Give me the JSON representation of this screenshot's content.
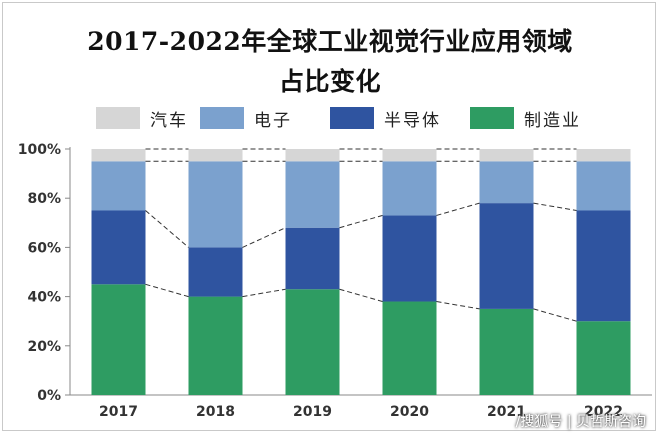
{
  "chart_data": {
    "type": "bar",
    "stacked": true,
    "title_lines": [
      "2017-2022年全球工业视觉行业应用领域",
      "占比变化"
    ],
    "categories": [
      "2017",
      "2018",
      "2019",
      "2020",
      "2021",
      "2022"
    ],
    "series": [
      {
        "name": "制造业",
        "color": "#2e9c62",
        "values": [
          45,
          40,
          43,
          38,
          35,
          30
        ]
      },
      {
        "name": "半导体",
        "color": "#2f54a0",
        "values": [
          30,
          20,
          25,
          35,
          43,
          45
        ]
      },
      {
        "name": "电子",
        "color": "#7ba1ce",
        "values": [
          20,
          35,
          27,
          22,
          17,
          20
        ]
      },
      {
        "name": "汽车",
        "color": "#d6d6d6",
        "values": [
          5,
          5,
          5,
          5,
          5,
          5
        ]
      }
    ],
    "legend_order": [
      "汽车",
      "电子",
      "半导体",
      "制造业"
    ],
    "yticks": [
      "0%",
      "20%",
      "40%",
      "60%",
      "80%",
      "100%"
    ],
    "ylim": [
      0,
      100
    ],
    "legend_position": "top",
    "series_lines": "dashed connectors between bar segment tops",
    "grid": false
  },
  "watermark": "/搜狐号 | 贝哲斯咨询"
}
